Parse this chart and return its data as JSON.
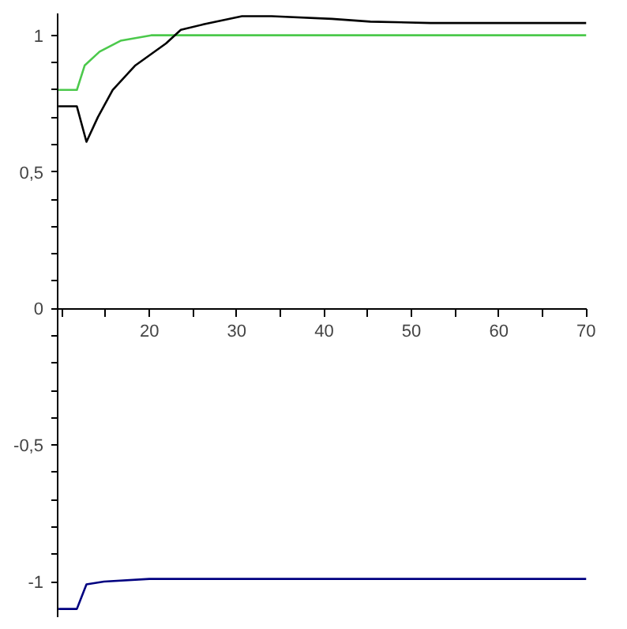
{
  "chart_data": {
    "type": "line",
    "xlim": [
      9.5,
      70
    ],
    "ylim": [
      -1.13,
      1.08
    ],
    "xticks": [
      {
        "value": 10,
        "label": null
      },
      {
        "value": 15,
        "label": null
      },
      20,
      {
        "value": 25,
        "label": null
      },
      30,
      {
        "value": 35,
        "label": null
      },
      40,
      {
        "value": 45,
        "label": null
      },
      50,
      {
        "value": 55,
        "label": null
      },
      60,
      {
        "value": 65,
        "label": null
      },
      70
    ],
    "yticks": [
      {
        "value": -1,
        "label": "-1"
      },
      {
        "value": -0.9,
        "label": null
      },
      {
        "value": -0.8,
        "label": null
      },
      {
        "value": -0.7,
        "label": null
      },
      {
        "value": -0.6,
        "label": null
      },
      {
        "value": -0.5,
        "label": "-0,5"
      },
      {
        "value": -0.4,
        "label": null
      },
      {
        "value": -0.3,
        "label": null
      },
      {
        "value": -0.2,
        "label": null
      },
      {
        "value": -0.1,
        "label": null
      },
      0,
      {
        "value": 0.1,
        "label": null
      },
      {
        "value": 0.2,
        "label": null
      },
      {
        "value": 0.3,
        "label": null
      },
      {
        "value": 0.4,
        "label": null
      },
      {
        "value": 0.5,
        "label": "0,5"
      },
      {
        "value": 0.6,
        "label": null
      },
      {
        "value": 0.7,
        "label": null
      },
      {
        "value": 0.8,
        "label": null
      },
      {
        "value": 0.9,
        "label": null
      },
      1
    ],
    "grid": false,
    "series": [
      {
        "color": "#4cc94c",
        "x": [
          9.6,
          11.7,
          12.6,
          14.3,
          16.7,
          20.2,
          70
        ],
        "values": [
          0.8,
          0.8,
          0.89,
          0.94,
          0.98,
          1.0,
          1.0
        ]
      },
      {
        "color": "#000000",
        "x": [
          9.6,
          11.7,
          12.8,
          14.1,
          15.8,
          18.4,
          21.9,
          23.6,
          26.2,
          30.6,
          34,
          40.9,
          45.3,
          52.2,
          70
        ],
        "values": [
          0.74,
          0.74,
          0.61,
          0.7,
          0.8,
          0.89,
          0.97,
          1.02,
          1.04,
          1.07,
          1.07,
          1.06,
          1.05,
          1.045,
          1.045
        ]
      },
      {
        "color": "#000080",
        "x": [
          9.6,
          11.7,
          12.8,
          14.8,
          20,
          70
        ],
        "values": [
          -1.1,
          -1.1,
          -1.01,
          -1.0,
          -0.99,
          -0.99
        ]
      }
    ]
  }
}
